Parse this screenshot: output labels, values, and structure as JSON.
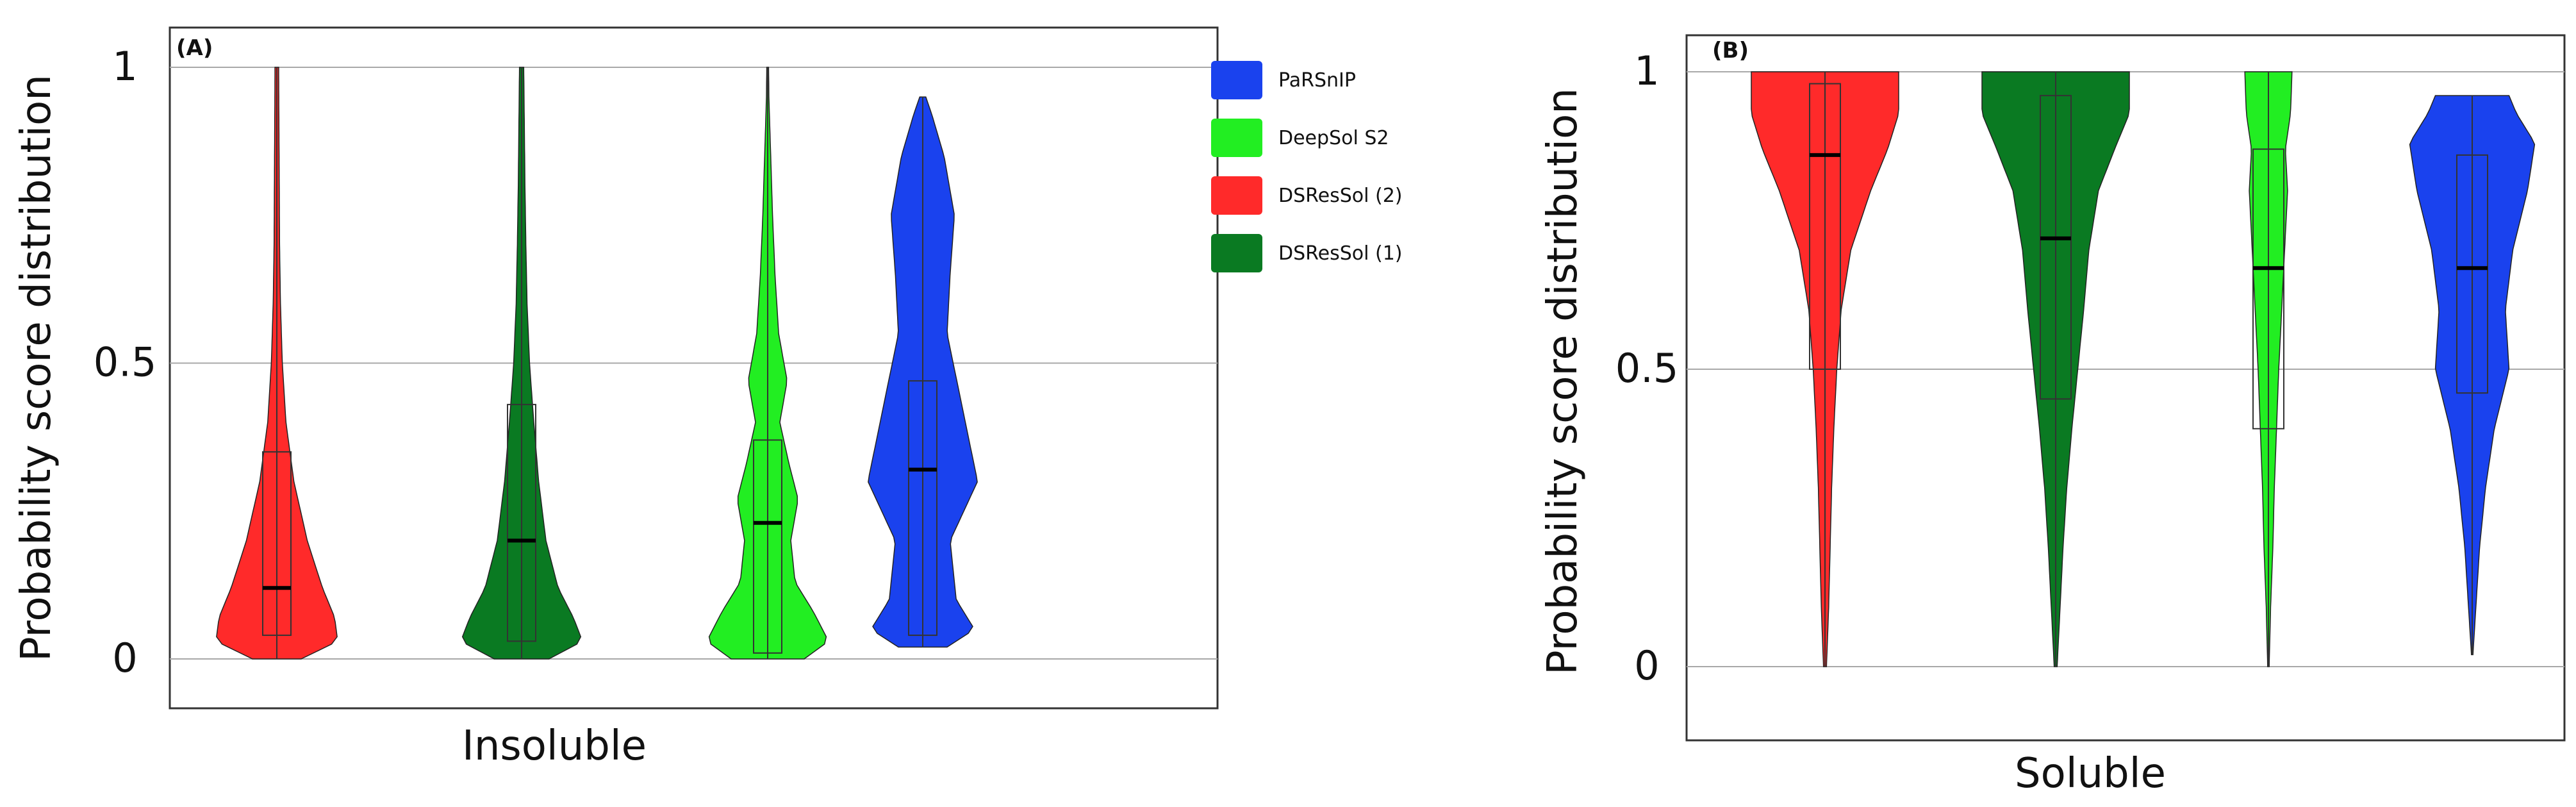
{
  "chart_data": [
    {
      "type": "violin",
      "panel_label": "(A)",
      "xlabel": "Insoluble",
      "ylabel": "Probability score distribution",
      "ylim": [
        0,
        1
      ],
      "yticks": [
        0,
        0.5,
        1
      ],
      "ytick_labels": [
        "0",
        "0.5",
        "1"
      ],
      "grid": true,
      "series": [
        {
          "name": "DSResSol (2)",
          "color": "#ff2a2a",
          "min": 0.0,
          "q1": 0.04,
          "median": 0.12,
          "q3": 0.35,
          "max": 1.0,
          "density": [
            [
              0,
              0.4
            ],
            [
              0.03,
              1
            ],
            [
              0.07,
              0.95
            ],
            [
              0.12,
              0.75
            ],
            [
              0.2,
              0.5
            ],
            [
              0.3,
              0.28
            ],
            [
              0.4,
              0.15
            ],
            [
              0.5,
              0.09
            ],
            [
              0.6,
              0.06
            ],
            [
              0.7,
              0.045
            ],
            [
              0.8,
              0.04
            ],
            [
              0.9,
              0.035
            ],
            [
              1.0,
              0.03
            ]
          ]
        },
        {
          "name": "DSResSol (1)",
          "color": "#0a7a22",
          "min": 0.0,
          "q1": 0.03,
          "median": 0.2,
          "q3": 0.43,
          "max": 1.0,
          "density": [
            [
              0,
              0.45
            ],
            [
              0.03,
              1
            ],
            [
              0.07,
              0.85
            ],
            [
              0.12,
              0.6
            ],
            [
              0.2,
              0.4
            ],
            [
              0.3,
              0.28
            ],
            [
              0.4,
              0.2
            ],
            [
              0.5,
              0.13
            ],
            [
              0.6,
              0.09
            ],
            [
              0.7,
              0.07
            ],
            [
              0.8,
              0.055
            ],
            [
              0.9,
              0.045
            ],
            [
              1.0,
              0.035
            ]
          ]
        },
        {
          "name": "DeepSol S2",
          "color": "#22ee22",
          "min": 0.0,
          "q1": 0.01,
          "median": 0.23,
          "q3": 0.37,
          "max": 1.0,
          "density": [
            [
              0,
              0.6
            ],
            [
              0.03,
              1
            ],
            [
              0.08,
              0.75
            ],
            [
              0.13,
              0.45
            ],
            [
              0.2,
              0.38
            ],
            [
              0.27,
              0.5
            ],
            [
              0.33,
              0.35
            ],
            [
              0.4,
              0.2
            ],
            [
              0.47,
              0.32
            ],
            [
              0.55,
              0.18
            ],
            [
              0.65,
              0.12
            ],
            [
              0.75,
              0.08
            ],
            [
              0.85,
              0.05
            ],
            [
              0.95,
              0.02
            ],
            [
              1.0,
              0.015
            ]
          ]
        },
        {
          "name": "PaRSnIP",
          "color": "#1a42ee",
          "min": 0.02,
          "q1": 0.04,
          "median": 0.32,
          "q3": 0.47,
          "max": 0.95,
          "density": [
            [
              0.02,
              0.4
            ],
            [
              0.05,
              0.85
            ],
            [
              0.1,
              0.55
            ],
            [
              0.2,
              0.45
            ],
            [
              0.3,
              0.9
            ],
            [
              0.35,
              0.8
            ],
            [
              0.45,
              0.6
            ],
            [
              0.55,
              0.4
            ],
            [
              0.65,
              0.45
            ],
            [
              0.75,
              0.52
            ],
            [
              0.85,
              0.35
            ],
            [
              0.92,
              0.15
            ],
            [
              0.95,
              0.05
            ]
          ]
        }
      ]
    },
    {
      "type": "violin",
      "panel_label": "(B)",
      "xlabel": "Soluble",
      "ylabel": "Probability score distribution",
      "ylim": [
        0,
        1
      ],
      "yticks": [
        0,
        0.5,
        1
      ],
      "ytick_labels": [
        "0",
        "0.5",
        "1"
      ],
      "grid": true,
      "series": [
        {
          "name": "DSResSol (2)",
          "color": "#ff2a2a",
          "min": 0.0,
          "q1": 0.5,
          "median": 0.86,
          "q3": 0.98,
          "max": 1.0,
          "density": [
            [
              0,
              0.02
            ],
            [
              0.1,
              0.05
            ],
            [
              0.2,
              0.07
            ],
            [
              0.3,
              0.09
            ],
            [
              0.4,
              0.12
            ],
            [
              0.5,
              0.16
            ],
            [
              0.6,
              0.22
            ],
            [
              0.7,
              0.35
            ],
            [
              0.8,
              0.62
            ],
            [
              0.87,
              0.85
            ],
            [
              0.93,
              1
            ],
            [
              1.0,
              1
            ]
          ]
        },
        {
          "name": "DSResSol (1)",
          "color": "#0a7a22",
          "min": 0.0,
          "q1": 0.45,
          "median": 0.72,
          "q3": 0.96,
          "max": 1.0,
          "density": [
            [
              0,
              0.02
            ],
            [
              0.1,
              0.06
            ],
            [
              0.2,
              0.1
            ],
            [
              0.3,
              0.15
            ],
            [
              0.4,
              0.22
            ],
            [
              0.5,
              0.3
            ],
            [
              0.6,
              0.38
            ],
            [
              0.7,
              0.45
            ],
            [
              0.8,
              0.58
            ],
            [
              0.87,
              0.8
            ],
            [
              0.93,
              1
            ],
            [
              1.0,
              1
            ]
          ]
        },
        {
          "name": "DeepSol S2",
          "color": "#22ee22",
          "min": 0.0,
          "q1": 0.4,
          "median": 0.67,
          "q3": 0.87,
          "max": 1.0,
          "density": [
            [
              0,
              0.01
            ],
            [
              0.1,
              0.03
            ],
            [
              0.2,
              0.06
            ],
            [
              0.3,
              0.08
            ],
            [
              0.4,
              0.11
            ],
            [
              0.5,
              0.14
            ],
            [
              0.6,
              0.18
            ],
            [
              0.7,
              0.22
            ],
            [
              0.8,
              0.26
            ],
            [
              0.87,
              0.23
            ],
            [
              0.93,
              0.3
            ],
            [
              1.0,
              0.32
            ]
          ]
        },
        {
          "name": "PaRSnIP",
          "color": "#1a42ee",
          "min": 0.02,
          "q1": 0.46,
          "median": 0.67,
          "q3": 0.86,
          "max": 0.96,
          "density": [
            [
              0.02,
              0.01
            ],
            [
              0.1,
              0.05
            ],
            [
              0.2,
              0.1
            ],
            [
              0.3,
              0.18
            ],
            [
              0.4,
              0.3
            ],
            [
              0.5,
              0.5
            ],
            [
              0.6,
              0.45
            ],
            [
              0.7,
              0.55
            ],
            [
              0.8,
              0.75
            ],
            [
              0.88,
              0.85
            ],
            [
              0.93,
              0.6
            ],
            [
              0.96,
              0.5
            ]
          ]
        }
      ]
    }
  ],
  "legend": {
    "placement": "top-center",
    "items": [
      {
        "label": "PaRSnIP",
        "color": "#1a42ee"
      },
      {
        "label": "DeepSol S2",
        "color": "#22ee22"
      },
      {
        "label": "DSResSol (2)",
        "color": "#ff2a2a"
      },
      {
        "label": "DSResSol (1)",
        "color": "#0a7a22"
      }
    ]
  }
}
